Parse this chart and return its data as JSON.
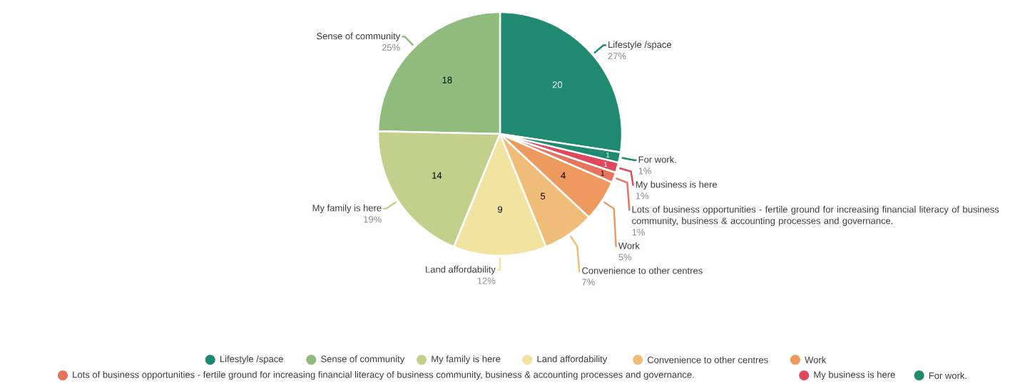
{
  "chart_data": {
    "type": "pie",
    "categories": [
      "Lifestyle /space",
      "Sense of community",
      "My family is here",
      "Land affordability",
      "Convenience to other centres",
      "Work",
      "Lots of business opportunities - fertile ground for increasing financial literacy of business community, business & accounting processes and governance.",
      "My business is here",
      "For work."
    ],
    "values": [
      20,
      18,
      14,
      9,
      5,
      4,
      1,
      1,
      1
    ],
    "colors": [
      "#1f8a70",
      "#8fbc7c",
      "#c2d08c",
      "#f3e3a0",
      "#f0bd79",
      "#ee9a5e",
      "#e8745d",
      "#e0485e",
      "#1f8a70"
    ],
    "value_labels": [
      "20",
      "18",
      "14",
      "9",
      "5",
      "4",
      "1",
      "1",
      "1"
    ],
    "annotations": [
      "27%",
      "25%",
      "19%",
      "12%",
      "7%",
      "5%",
      "1%",
      "1%",
      "1%"
    ],
    "legend": "bottom"
  }
}
